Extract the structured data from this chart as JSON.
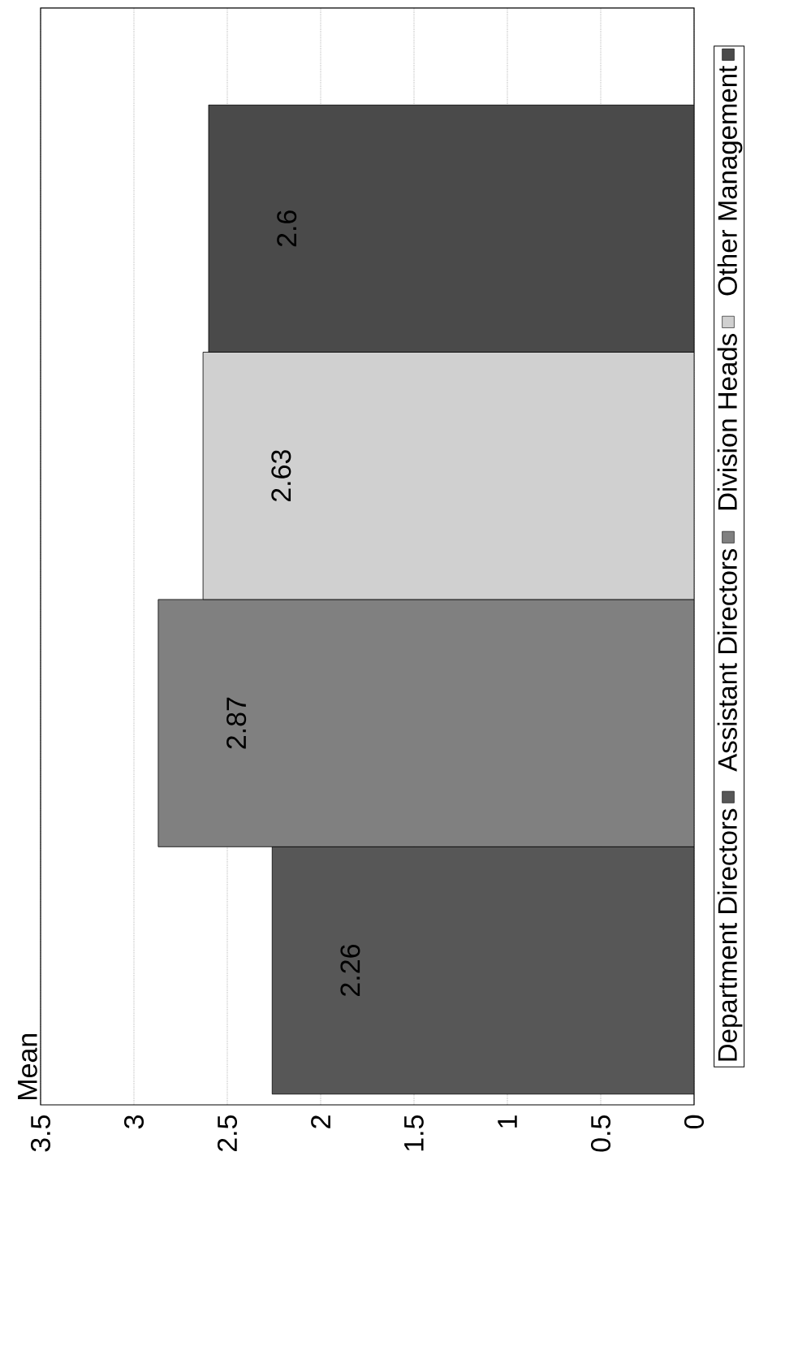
{
  "chart_data": {
    "type": "bar",
    "orientation": "horizontal",
    "ylabel": "Mean",
    "categories": [
      null
    ],
    "series": [
      {
        "name": "Department Directors",
        "color": "#575757",
        "values": [
          2.26
        ]
      },
      {
        "name": "Assistant Directors",
        "color": "#808080",
        "values": [
          2.87
        ]
      },
      {
        "name": "Division Heads",
        "color": "#d0d0d0",
        "values": [
          2.63
        ]
      },
      {
        "name": "Other Management",
        "color": "#4a4a4a",
        "values": [
          2.6
        ]
      }
    ],
    "xlim": [
      3.5,
      0
    ],
    "xticks": [
      0,
      0.5,
      1,
      1.5,
      2,
      2.5,
      3,
      3.5
    ],
    "grid": "x",
    "legend": "right",
    "data_labels": true
  }
}
